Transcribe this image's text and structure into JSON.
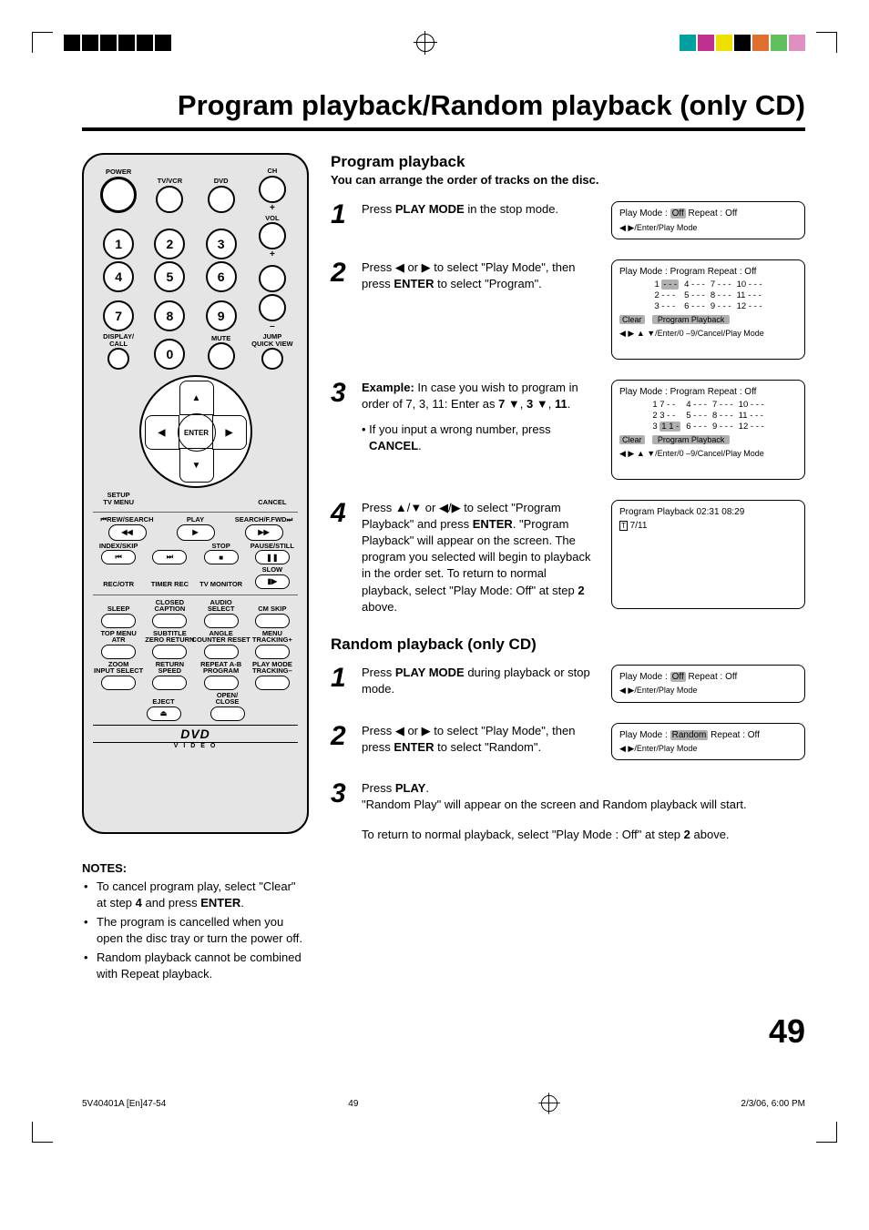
{
  "reg_colors_left": [
    "#000000",
    "#000000",
    "#000000",
    "#000000",
    "#000000",
    "#000000"
  ],
  "reg_colors_right": [
    "#00a0a0",
    "#c03090",
    "#f0e000",
    "#000000",
    "#e07030",
    "#60c060",
    "#e090c0"
  ],
  "title": "Program playback/Random playback (only CD)",
  "remote": {
    "row1": {
      "power": "POWER",
      "tvvcr": "TV/VCR",
      "dvd": "DVD",
      "ch": "CH"
    },
    "vol": "VOL",
    "mute": "MUTE",
    "display_call": "DISPLAY/\nCALL",
    "jump_qv": "JUMP\nQUICK VIEW",
    "enter": "ENTER",
    "setup": "SETUP\nTV MENU",
    "cancel": "CANCEL",
    "media_row1": {
      "rew": "⏮REW/SEARCH",
      "play": "PLAY",
      "fwd": "SEARCH/F.FWD⏭"
    },
    "media_row2": {
      "idx": "INDEX/SKIP",
      "stop": "STOP",
      "pause": "PAUSE/STILL"
    },
    "media_row3": {
      "rec": "REC/OTR",
      "timer": "TIMER REC",
      "tvmon": "TV MONITOR",
      "slow": "SLOW"
    },
    "r4": {
      "sleep": "SLEEP",
      "cc": "CLOSED\nCAPTION",
      "audio": "AUDIO\nSELECT",
      "cm": "CM SKIP"
    },
    "r5": {
      "top": "TOP MENU\nATR",
      "sub": "SUBTITLE\nZERO RETURN",
      "angle": "ANGLE\nCOUNTER RESET",
      "menu": "MENU\nTRACKING+"
    },
    "r6": {
      "zoom": "ZOOM\nINPUT SELECT",
      "ret": "RETURN\nSPEED",
      "rep": "REPEAT A-B\nPROGRAM",
      "pm": "PLAY MODE\nTRACKING–"
    },
    "r7": {
      "eject": "EJECT",
      "open": "OPEN/\nCLOSE"
    },
    "dvd_logo": "DVD",
    "video": "V I D E O"
  },
  "notes": {
    "header": "NOTES:",
    "items": [
      "To cancel program play, select \"Clear\" at step 4 and press ENTER.",
      "The program is cancelled when you open the disc tray or turn the power off.",
      "Random playback cannot be combined with Repeat playback."
    ]
  },
  "program": {
    "heading": "Program playback",
    "subheading": "You can arrange the order of tracks on the disc.",
    "step1": {
      "pre": "Press ",
      "b1": "PLAY MODE",
      "post": " in the stop mode."
    },
    "step2": {
      "t": "Press ◀ or ▶ to select \"Play Mode\", then press ",
      "b": "ENTER",
      "t2": " to select \"Program\"."
    },
    "step3": {
      "b0": "Example:",
      "t": " In case you wish to program in order of 7, 3, 11: Enter as ",
      "b1": "7 ▼",
      "c": ", ",
      "b2": "3 ▼",
      "c2": ", ",
      "b3": "11",
      "d": ".",
      "sub_pre": "• If you input a wrong number, press ",
      "sub_b": "CANCEL",
      "sub_post": "."
    },
    "step4": {
      "t": "Press ▲/▼ or ◀/▶ to select \"Program Playback\" and press ",
      "b": "ENTER",
      "t2": ". \"Program Playback\" will appear on the screen. The program you selected will begin to playback in the order set. To return to normal playback, select \"Play Mode: Off\" at step ",
      "b2": "2",
      "t3": " above."
    }
  },
  "random": {
    "heading": "Random playback (only CD)",
    "step1": {
      "pre": "Press ",
      "b": "PLAY MODE",
      "post": " during playback or stop mode."
    },
    "step2": {
      "t": "Press ◀ or ▶ to select \"Play Mode\", then press ",
      "b": "ENTER",
      "t2": " to select \"Random\"."
    },
    "step3": {
      "pre": "Press ",
      "b": "PLAY",
      "post": ".",
      "line2": "\"Random Play\" will appear on the screen and Random playback will start.",
      "line3_a": "To return to normal playback, select \"Play Mode : Off\" at step ",
      "line3_b": "2",
      "line3_c": " above."
    }
  },
  "screens": {
    "s1": {
      "l1_a": "Play Mode  :  ",
      "l1_hl": "Off",
      "l1_b": "    Repeat   :   Off",
      "nav": "◀ ▶/Enter/Play Mode"
    },
    "s2": {
      "hdr": "Play Mode  :  Program    Repeat    :    Off",
      "c1": [
        "1 - - -",
        "2 - - -",
        "3 - - -"
      ],
      "c2": [
        "4 - - -",
        "5 - - -",
        "6 - - -"
      ],
      "c3": [
        "7 - - -",
        "8 - - -",
        "9 - - -"
      ],
      "c4": [
        "10 - - -",
        "11 - - -",
        "12 - - -"
      ],
      "clear": "Clear",
      "pp": "Program Playback",
      "nav": "◀ ▶ ▲ ▼/Enter/0 –9/Cancel/Play Mode"
    },
    "s3": {
      "hdr": "Play Mode  :  Program    Repeat    :    Off",
      "c1": [
        "1 7 - -",
        "2 3 - -",
        "3 1 1 -"
      ],
      "c2": [
        "4 - - -",
        "5 - - -",
        "6 - - -"
      ],
      "c3": [
        "7 - - -",
        "8 - - -",
        "9 - - -"
      ],
      "c4": [
        "10 - - -",
        "11 - - -",
        "12 - - -"
      ],
      "clear": "Clear",
      "pp": "Program Playback",
      "nav": "◀ ▶ ▲ ▼/Enter/0 –9/Cancel/Play Mode"
    },
    "s4": {
      "l1": "Program Playback        02:31  08:29",
      "l2": "▸ 7/11"
    },
    "s5": {
      "l1_a": "Play Mode  :  ",
      "l1_hl": "Off",
      "l1_b": "    Repeat   :   Off",
      "nav": "◀ ▶/Enter/Play Mode"
    },
    "s6": {
      "l1_a": "Play Mode  : ",
      "l1_hl": "Random",
      "l1_b": " Repeat  :  Off",
      "nav": "◀ ▶/Enter/Play Mode"
    }
  },
  "page_number": "49",
  "footer": {
    "file": "5V40401A [En]47-54",
    "pg": "49",
    "date": "2/3/06, 6:00 PM"
  }
}
